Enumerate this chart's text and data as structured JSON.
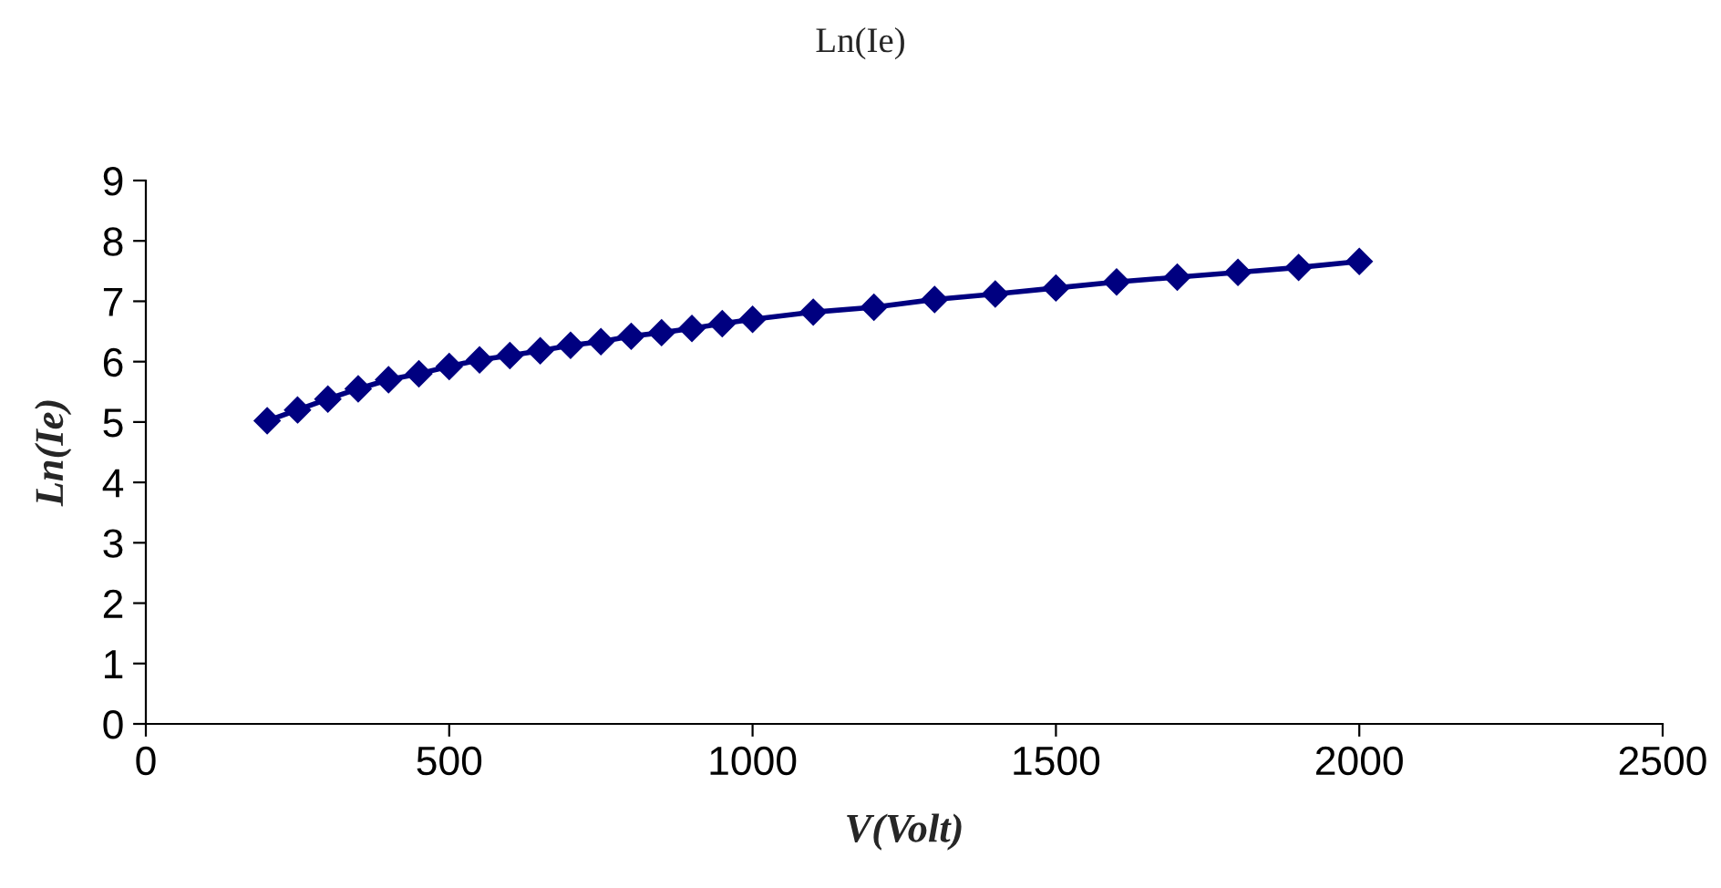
{
  "chart_data": {
    "type": "line",
    "title": "Ln(Ie)",
    "xlabel": "V(Volt)",
    "ylabel": "Ln(Ie)",
    "x": [
      200,
      250,
      300,
      350,
      400,
      450,
      500,
      550,
      600,
      650,
      700,
      750,
      800,
      850,
      900,
      950,
      1000,
      1100,
      1200,
      1300,
      1400,
      1500,
      1600,
      1700,
      1800,
      1900,
      2000
    ],
    "series": [
      {
        "color": "#000080",
        "values": [
          5.02,
          5.2,
          5.38,
          5.55,
          5.7,
          5.8,
          5.92,
          6.03,
          6.1,
          6.18,
          6.27,
          6.33,
          6.42,
          6.48,
          6.55,
          6.63,
          6.7,
          6.82,
          6.9,
          7.03,
          7.12,
          7.22,
          7.32,
          7.4,
          7.48,
          7.56,
          7.66
        ]
      }
    ],
    "xlim": [
      0,
      2500
    ],
    "xticks": [
      0,
      500,
      1000,
      1500,
      2000,
      2500
    ],
    "ylim": [
      0,
      9
    ],
    "yticks": [
      0,
      1,
      2,
      3,
      4,
      5,
      6,
      7,
      8,
      9
    ],
    "grid": false,
    "legend": false,
    "marker": "diamond",
    "line_style": "solid"
  }
}
